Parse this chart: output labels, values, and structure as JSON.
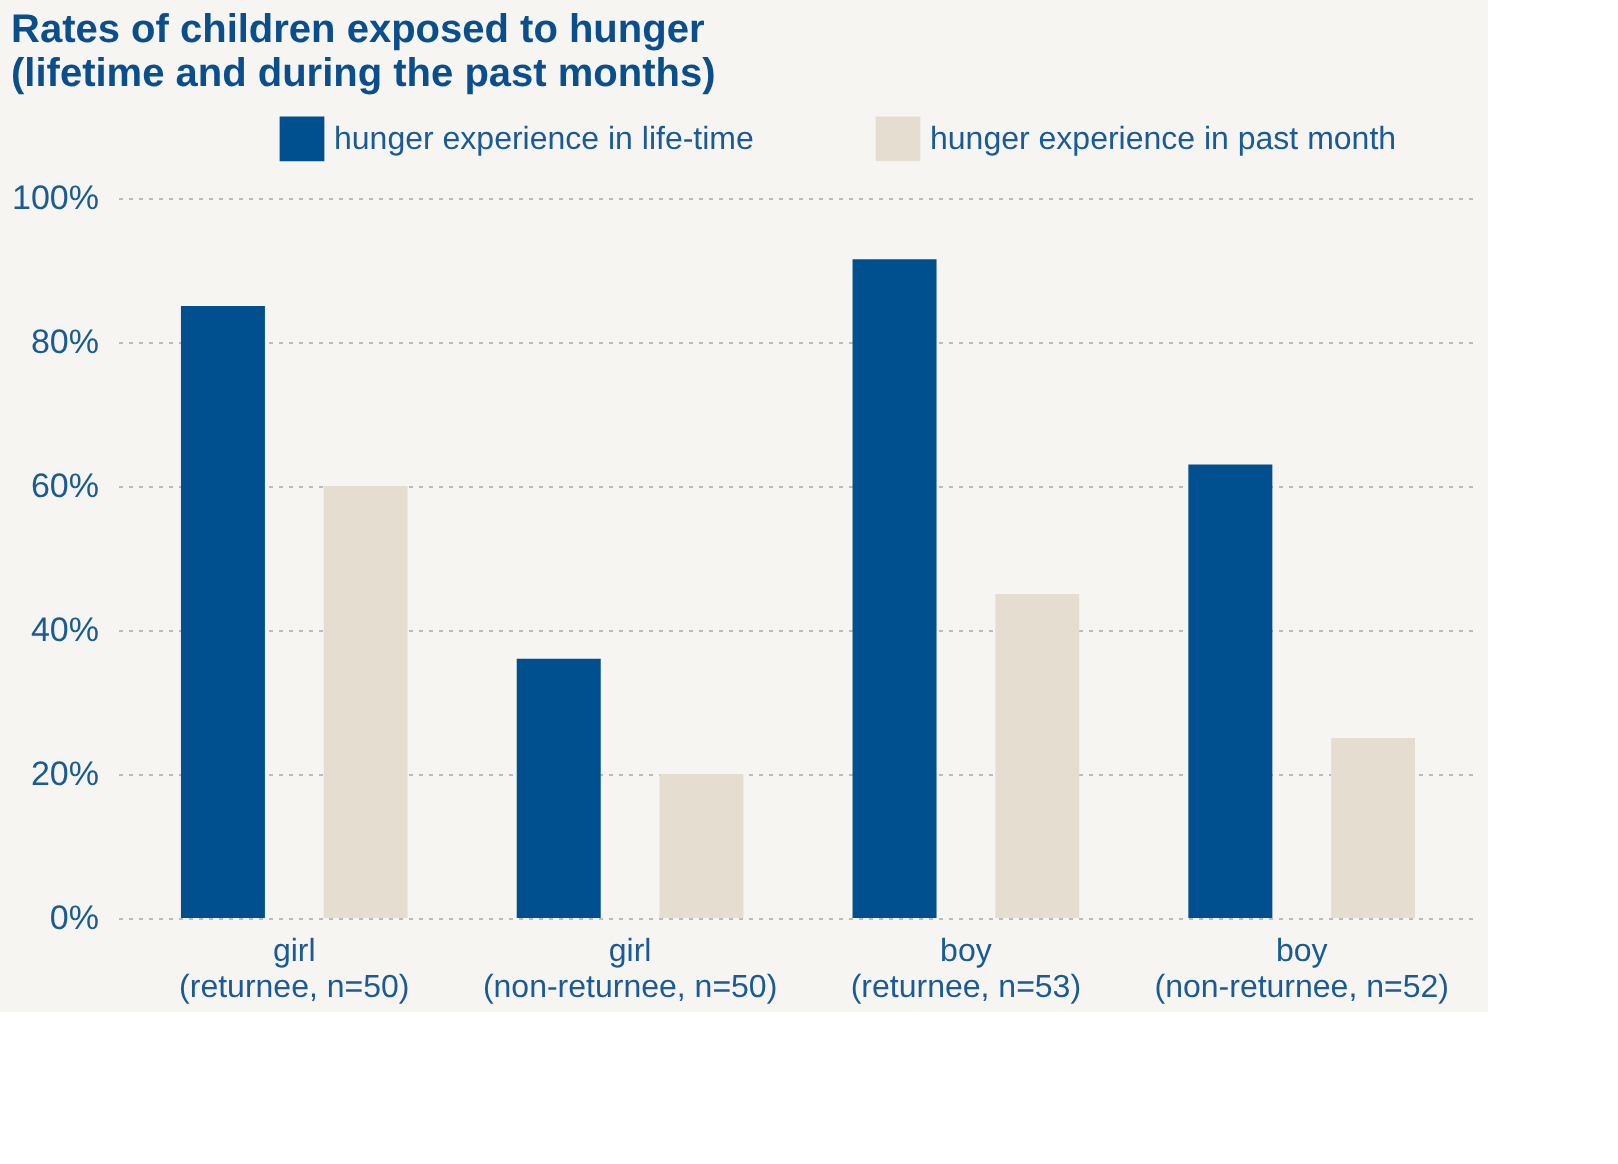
{
  "chart_data": {
    "type": "bar",
    "title": [
      "Rates of children exposed to hunger",
      "(lifetime and during the past months)"
    ],
    "categories": [
      "girl\n(returnee, n=50)",
      "girl\n(non-returnee, n=50)",
      "boy\n(returnee, n=53)",
      "boy\n(non-returnee, n=52)"
    ],
    "series": [
      {
        "name": "hunger experience in life-time",
        "color": "#00508f",
        "values": [
          85,
          36,
          91.5,
          63
        ]
      },
      {
        "name": "hunger experience in past month",
        "color": "#e6ddd1",
        "values": [
          60,
          20,
          45,
          25
        ]
      }
    ],
    "ylim": [
      0,
      100
    ],
    "yticks": [
      {
        "value": 0,
        "label": "0%"
      },
      {
        "value": 20,
        "label": "20%"
      },
      {
        "value": 40,
        "label": "40%"
      },
      {
        "value": 60,
        "label": "60%"
      },
      {
        "value": 80,
        "label": "80%"
      },
      {
        "value": 100,
        "label": "100%"
      }
    ],
    "grid": "y",
    "legend": "top right"
  }
}
